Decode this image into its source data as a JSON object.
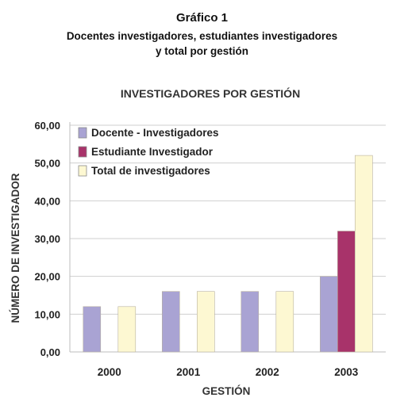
{
  "figure": {
    "number": "Gráfico 1",
    "subtitle_line1": "Docentes investigadores, estudiantes investigadores",
    "subtitle_line2": "y total por gestión"
  },
  "chart_data": {
    "type": "bar",
    "title": "INVESTIGADORES POR GESTIÓN",
    "xlabel": "GESTIÓN",
    "ylabel": "NÚMERO DE INVESTIGADOR",
    "categories": [
      "2000",
      "2001",
      "2002",
      "2003"
    ],
    "ylim": [
      0,
      60
    ],
    "yticks": [
      "0,00",
      "10,00",
      "20,00",
      "30,00",
      "40,00",
      "50,00",
      "60,00"
    ],
    "grid": true,
    "legend_position": "top-left",
    "series": [
      {
        "name": "Docente - Investigadores",
        "values": [
          12,
          16,
          16,
          20
        ],
        "color": "#a9a3d3"
      },
      {
        "name": "Estudiante Investigador",
        "values": [
          null,
          null,
          null,
          32
        ],
        "color": "#a8336a"
      },
      {
        "name": "Total de investigadores",
        "values": [
          12,
          16,
          16,
          52
        ],
        "color": "#fdf8d2"
      }
    ]
  }
}
